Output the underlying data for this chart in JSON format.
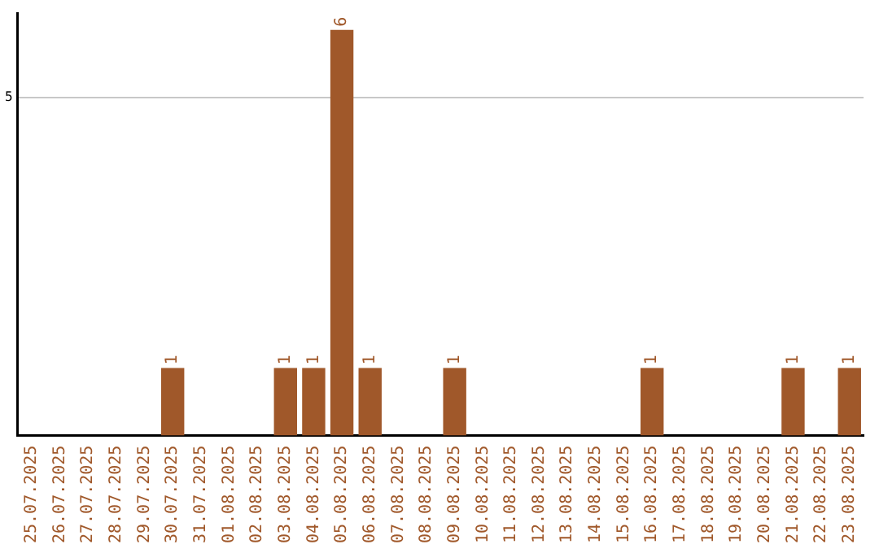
{
  "chart_data": {
    "type": "bar",
    "categories": [
      "25.07.2025",
      "26.07.2025",
      "27.07.2025",
      "28.07.2025",
      "29.07.2025",
      "30.07.2025",
      "31.07.2025",
      "01.08.2025",
      "02.08.2025",
      "03.08.2025",
      "04.08.2025",
      "05.08.2025",
      "06.08.2025",
      "07.08.2025",
      "08.08.2025",
      "09.08.2025",
      "10.08.2025",
      "11.08.2025",
      "12.08.2025",
      "13.08.2025",
      "14.08.2025",
      "15.08.2025",
      "16.08.2025",
      "17.08.2025",
      "18.08.2025",
      "19.08.2025",
      "20.08.2025",
      "21.08.2025",
      "22.08.2025",
      "23.08.2025"
    ],
    "values": [
      0,
      0,
      0,
      0,
      0,
      1,
      0,
      0,
      0,
      1,
      1,
      6,
      1,
      0,
      0,
      1,
      0,
      0,
      0,
      0,
      0,
      0,
      1,
      0,
      0,
      0,
      0,
      1,
      0,
      1
    ],
    "value_labels": [
      null,
      null,
      null,
      null,
      null,
      "1",
      null,
      null,
      null,
      "1",
      "1",
      "6",
      "1",
      null,
      null,
      "1",
      null,
      null,
      null,
      null,
      null,
      null,
      "1",
      null,
      null,
      null,
      null,
      "1",
      null,
      "1"
    ],
    "color": "#a0582a",
    "ylim": [
      0,
      6.25
    ],
    "yticks": [
      5
    ],
    "grid": "y",
    "legend": false
  }
}
